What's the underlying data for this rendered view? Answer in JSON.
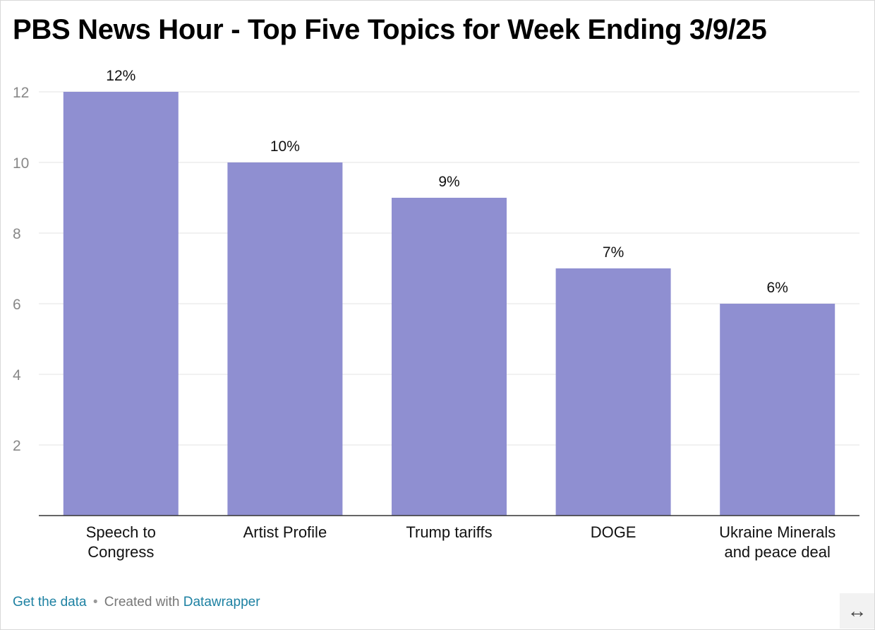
{
  "header": {
    "title": "PBS News Hour - Top Five Topics for Week Ending 3/9/25"
  },
  "chart_data": {
    "type": "bar",
    "title": "PBS News Hour - Top Five Topics for Week Ending 3/9/25",
    "xlabel": "",
    "ylabel": "",
    "categories": [
      [
        "Speech to",
        "Congress"
      ],
      [
        "Artist Profile"
      ],
      [
        "Trump tariffs"
      ],
      [
        "DOGE"
      ],
      [
        "Ukraine Minerals",
        "and peace deal"
      ]
    ],
    "values": [
      12,
      10,
      9,
      7,
      6
    ],
    "data_labels": [
      "12%",
      "10%",
      "9%",
      "7%",
      "6%"
    ],
    "ylim": [
      0,
      12
    ],
    "yticks": [
      2,
      4,
      6,
      8,
      10,
      12
    ],
    "grid": true,
    "legend": "none",
    "bar_color": "#8f8fd1"
  },
  "footer": {
    "get_data_label": "Get the data",
    "separator": "•",
    "created_with_label": "Created with",
    "tool_label": "Datawrapper"
  },
  "controls": {
    "resize_icon": "↔"
  }
}
